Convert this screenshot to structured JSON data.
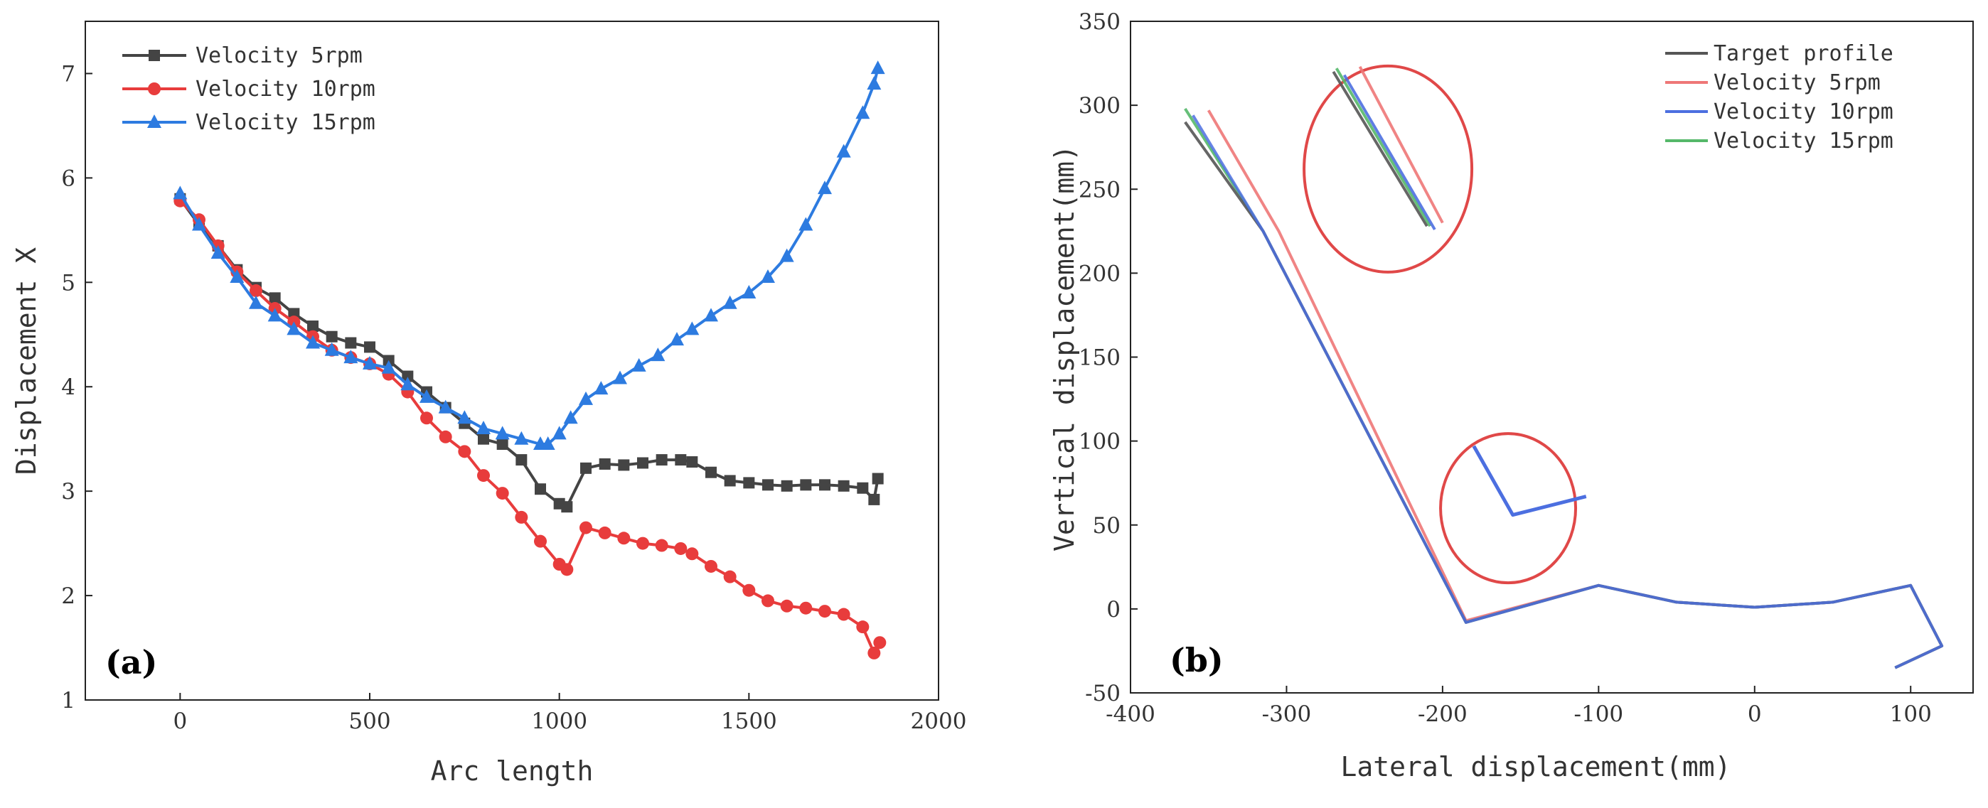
{
  "chart_data": [
    {
      "type": "line",
      "panel_label": "(a)",
      "xlabel": "Arc length",
      "ylabel": "Displacement X",
      "xlim": [
        -250,
        2000
      ],
      "ylim": [
        1,
        7.5
      ],
      "xticks": [
        0,
        500,
        1000,
        1500,
        2000
      ],
      "yticks": [
        1,
        2,
        3,
        4,
        5,
        6,
        7
      ],
      "legend_position": "top-left",
      "series": [
        {
          "name": "Velocity 5rpm",
          "color": "#444444",
          "marker": "square",
          "x": [
            0,
            50,
            100,
            150,
            200,
            250,
            300,
            350,
            400,
            450,
            500,
            550,
            600,
            650,
            700,
            750,
            800,
            850,
            900,
            950,
            1000,
            1020,
            1070,
            1120,
            1170,
            1220,
            1270,
            1320,
            1350,
            1400,
            1450,
            1500,
            1550,
            1600,
            1650,
            1700,
            1750,
            1800,
            1830,
            1840
          ],
          "y": [
            5.8,
            5.55,
            5.35,
            5.12,
            4.95,
            4.85,
            4.7,
            4.58,
            4.48,
            4.42,
            4.38,
            4.25,
            4.1,
            3.95,
            3.8,
            3.65,
            3.5,
            3.45,
            3.3,
            3.02,
            2.88,
            2.85,
            3.22,
            3.26,
            3.25,
            3.27,
            3.3,
            3.3,
            3.28,
            3.18,
            3.1,
            3.08,
            3.06,
            3.05,
            3.06,
            3.06,
            3.05,
            3.03,
            2.92,
            3.12
          ]
        },
        {
          "name": "Velocity 10rpm",
          "color": "#e83c3c",
          "marker": "circle",
          "x": [
            0,
            50,
            100,
            150,
            200,
            250,
            300,
            350,
            400,
            450,
            500,
            550,
            600,
            650,
            700,
            750,
            800,
            850,
            900,
            950,
            1000,
            1020,
            1070,
            1120,
            1170,
            1220,
            1270,
            1320,
            1350,
            1400,
            1450,
            1500,
            1550,
            1600,
            1650,
            1700,
            1750,
            1800,
            1830,
            1845
          ],
          "y": [
            5.78,
            5.6,
            5.35,
            5.1,
            4.92,
            4.75,
            4.62,
            4.48,
            4.35,
            4.28,
            4.22,
            4.12,
            3.95,
            3.7,
            3.52,
            3.38,
            3.15,
            2.98,
            2.75,
            2.52,
            2.3,
            2.25,
            2.65,
            2.6,
            2.55,
            2.5,
            2.48,
            2.45,
            2.4,
            2.28,
            2.18,
            2.05,
            1.95,
            1.9,
            1.88,
            1.85,
            1.82,
            1.7,
            1.45,
            1.55
          ]
        },
        {
          "name": "Velocity 15rpm",
          "color": "#2d7be0",
          "marker": "triangle",
          "x": [
            0,
            50,
            100,
            150,
            200,
            250,
            300,
            350,
            400,
            450,
            500,
            550,
            600,
            650,
            700,
            750,
            800,
            850,
            900,
            950,
            970,
            1000,
            1030,
            1070,
            1110,
            1160,
            1210,
            1260,
            1310,
            1350,
            1400,
            1450,
            1500,
            1550,
            1600,
            1650,
            1700,
            1750,
            1800,
            1830,
            1840
          ],
          "y": [
            5.85,
            5.55,
            5.28,
            5.05,
            4.8,
            4.68,
            4.55,
            4.42,
            4.35,
            4.28,
            4.22,
            4.18,
            4.02,
            3.9,
            3.8,
            3.7,
            3.6,
            3.55,
            3.5,
            3.45,
            3.45,
            3.55,
            3.7,
            3.88,
            3.98,
            4.08,
            4.2,
            4.3,
            4.45,
            4.55,
            4.68,
            4.8,
            4.9,
            5.05,
            5.25,
            5.55,
            5.9,
            6.25,
            6.62,
            6.9,
            7.05
          ]
        }
      ]
    },
    {
      "type": "line",
      "panel_label": "(b)",
      "xlabel": "Lateral displacement(mm)",
      "ylabel": "Vertical displacement(mm)",
      "xlim": [
        -400,
        140
      ],
      "ylim": [
        -50,
        350
      ],
      "xticks": [
        -400,
        -300,
        -200,
        -100,
        0,
        100
      ],
      "yticks": [
        -50,
        0,
        50,
        100,
        150,
        200,
        250,
        300,
        350
      ],
      "legend_position": "top-right",
      "series": [
        {
          "name": "Target profile",
          "color": "#555555",
          "x": [
            -365,
            -315,
            -185,
            -100,
            -50,
            0,
            50,
            100,
            120,
            90
          ],
          "y": [
            290,
            225,
            -8,
            14,
            4,
            1,
            4,
            14,
            -22,
            -35
          ]
        },
        {
          "name": "Velocity 5rpm",
          "color": "#ee7777",
          "x": [
            -350,
            -305,
            -185,
            -100,
            -50,
            0,
            50,
            100,
            120,
            90
          ],
          "y": [
            297,
            225,
            -7,
            14,
            4,
            1,
            4,
            14,
            -22,
            -35
          ]
        },
        {
          "name": "Velocity 10rpm",
          "color": "#4c6fe0",
          "x": [
            -360,
            -315,
            -185,
            -100,
            -50,
            0,
            50,
            100,
            120,
            90
          ],
          "y": [
            294,
            225,
            -8,
            14,
            4,
            1,
            4,
            14,
            -22,
            -35
          ]
        },
        {
          "name": "Velocity 15rpm",
          "color": "#55b86a",
          "x": [
            -365,
            -315,
            -185,
            -100,
            -50,
            0,
            50,
            100,
            120,
            90
          ],
          "y": [
            298,
            225,
            -8,
            14,
            4,
            1,
            4,
            14,
            -22,
            -35
          ]
        }
      ]
    }
  ]
}
